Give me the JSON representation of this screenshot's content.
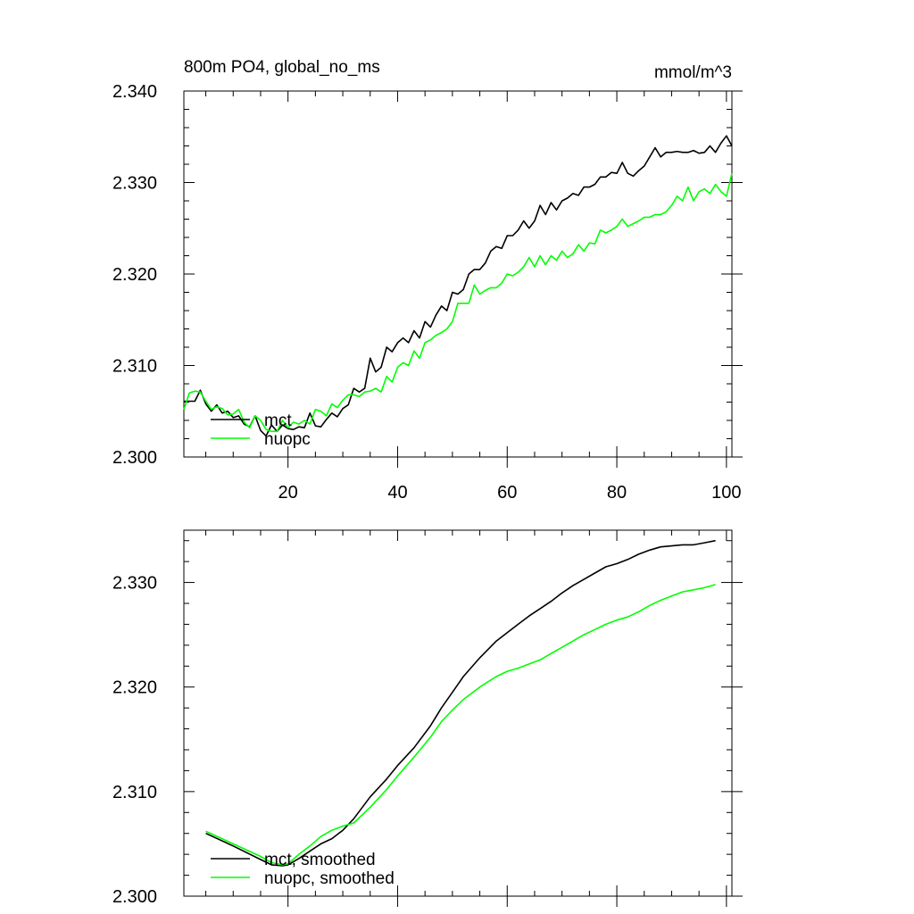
{
  "chart_data": [
    {
      "type": "line",
      "title": "800m PO4, global_no_ms",
      "units": "mmol/m^3",
      "xlabel": "",
      "ylabel": "",
      "xlim": [
        1,
        101
      ],
      "ylim": [
        2.3,
        2.34
      ],
      "xticks": [
        20,
        40,
        60,
        80,
        100
      ],
      "xtick_labels": [
        "20",
        "40",
        "60",
        "80",
        "100"
      ],
      "yticks": [
        2.3,
        2.31,
        2.32,
        2.33,
        2.34
      ],
      "ytick_labels": [
        "2.300",
        "2.310",
        "2.320",
        "2.330",
        "2.340"
      ],
      "grid": false,
      "legend_position": "bottom-left",
      "series": [
        {
          "name": "mct",
          "color": "#000000",
          "x": [
            1,
            2,
            3,
            4,
            5,
            6,
            7,
            8,
            9,
            10,
            11,
            12,
            13,
            14,
            15,
            16,
            17,
            18,
            19,
            20,
            21,
            22,
            23,
            24,
            25,
            26,
            27,
            28,
            29,
            30,
            31,
            32,
            33,
            34,
            35,
            36,
            37,
            38,
            39,
            40,
            41,
            42,
            43,
            44,
            45,
            46,
            47,
            48,
            49,
            50,
            51,
            52,
            53,
            54,
            55,
            56,
            57,
            58,
            59,
            60,
            61,
            62,
            63,
            64,
            65,
            66,
            67,
            68,
            69,
            70,
            71,
            72,
            73,
            74,
            75,
            76,
            77,
            78,
            79,
            80,
            81,
            82,
            83,
            84,
            85,
            86,
            87,
            88,
            89,
            90,
            91,
            92,
            93,
            94,
            95,
            96,
            97,
            98,
            99,
            100,
            101
          ],
          "values": [
            2.3061,
            2.3061,
            2.3061,
            2.3073,
            2.3058,
            2.305,
            2.3057,
            2.3048,
            2.305,
            2.3043,
            2.3045,
            2.3036,
            2.3033,
            2.3045,
            2.3029,
            2.3023,
            2.3035,
            2.3028,
            2.3035,
            2.3031,
            2.303,
            2.3033,
            2.3032,
            2.3048,
            2.3034,
            2.3033,
            2.3041,
            2.3048,
            2.3044,
            2.3053,
            2.3057,
            2.3075,
            2.3071,
            2.3075,
            2.3108,
            2.3093,
            2.3098,
            2.312,
            2.3115,
            2.3125,
            2.313,
            2.3125,
            2.3138,
            2.313,
            2.3148,
            2.3142,
            2.3155,
            2.3165,
            2.316,
            2.318,
            2.3178,
            2.3183,
            2.32,
            2.3205,
            2.3205,
            2.3212,
            2.3225,
            2.323,
            2.3228,
            2.3242,
            2.3242,
            2.3248,
            2.3258,
            2.325,
            2.3258,
            2.3275,
            2.3265,
            2.3278,
            2.327,
            2.328,
            2.3283,
            2.3288,
            2.3286,
            2.3295,
            2.3295,
            2.3298,
            2.3306,
            2.3306,
            2.3311,
            2.331,
            2.3322,
            2.331,
            2.3307,
            2.3313,
            2.3318,
            2.3328,
            2.3338,
            2.3328,
            2.3333,
            2.3333,
            2.3334,
            2.3333,
            2.3333,
            2.3335,
            2.3332,
            2.3333,
            2.334,
            2.3333,
            2.3343,
            2.3351,
            2.334
          ]
        },
        {
          "name": "nuopc",
          "color": "#00ff00",
          "x": [
            1,
            2,
            3,
            4,
            5,
            6,
            7,
            8,
            9,
            10,
            11,
            12,
            13,
            14,
            15,
            16,
            17,
            18,
            19,
            20,
            21,
            22,
            23,
            24,
            25,
            26,
            27,
            28,
            29,
            30,
            31,
            32,
            33,
            34,
            35,
            36,
            37,
            38,
            39,
            40,
            41,
            42,
            43,
            44,
            45,
            46,
            47,
            48,
            49,
            50,
            51,
            52,
            53,
            54,
            55,
            56,
            57,
            58,
            59,
            60,
            61,
            62,
            63,
            64,
            65,
            66,
            67,
            68,
            69,
            70,
            71,
            72,
            73,
            74,
            75,
            76,
            77,
            78,
            79,
            80,
            81,
            82,
            83,
            84,
            85,
            86,
            87,
            88,
            89,
            90,
            91,
            92,
            93,
            94,
            95,
            96,
            97,
            98,
            99,
            100,
            101
          ],
          "values": [
            2.3052,
            2.307,
            2.3072,
            2.3071,
            2.3061,
            2.3052,
            2.3055,
            2.3053,
            2.3046,
            2.3047,
            2.3052,
            2.3038,
            2.3032,
            2.3045,
            2.304,
            2.303,
            2.3028,
            2.3028,
            2.304,
            2.3032,
            2.3038,
            2.3036,
            2.304,
            2.3036,
            2.3052,
            2.305,
            2.3045,
            2.3058,
            2.3054,
            2.3062,
            2.3068,
            2.3068,
            2.3066,
            2.3071,
            2.3072,
            2.3075,
            2.3071,
            2.3088,
            2.3082,
            2.3098,
            2.3103,
            2.31,
            2.3116,
            2.3108,
            2.3125,
            2.3128,
            2.3133,
            2.3136,
            2.314,
            2.3148,
            2.3168,
            2.3168,
            2.3168,
            2.3188,
            2.3178,
            2.3182,
            2.3185,
            2.3185,
            2.319,
            2.32,
            2.3198,
            2.3202,
            2.3208,
            2.3218,
            2.3208,
            2.322,
            2.321,
            2.322,
            2.3215,
            2.3225,
            2.3218,
            2.3222,
            2.3232,
            2.3225,
            2.3234,
            2.3233,
            2.3248,
            2.3245,
            2.3248,
            2.3252,
            2.326,
            2.3252,
            2.3255,
            2.3258,
            2.3262,
            2.3262,
            2.3265,
            2.3265,
            2.3268,
            2.3275,
            2.3285,
            2.328,
            2.3295,
            2.328,
            2.329,
            2.3293,
            2.3288,
            2.3298,
            2.329,
            2.3285,
            2.331
          ]
        }
      ]
    },
    {
      "type": "line",
      "title": "",
      "xlabel": "",
      "ylabel": "",
      "xlim": [
        1,
        101
      ],
      "ylim": [
        2.3,
        2.335
      ],
      "xticks": [
        20,
        40,
        60,
        80,
        100
      ],
      "yticks": [
        2.3,
        2.31,
        2.32,
        2.33
      ],
      "ytick_labels": [
        "2.300",
        "2.310",
        "2.320",
        "2.330"
      ],
      "grid": false,
      "legend_position": "bottom-left",
      "series": [
        {
          "name": "mct, smoothed",
          "color": "#000000",
          "x": [
            5,
            10,
            15,
            17,
            19,
            20,
            22,
            24,
            26,
            28,
            30,
            32,
            35,
            38,
            40,
            43,
            46,
            48,
            50,
            52,
            55,
            58,
            60,
            62,
            64,
            66,
            68,
            70,
            72,
            74,
            76,
            78,
            80,
            82,
            84,
            86,
            88,
            90,
            92,
            94,
            96,
            98
          ],
          "values": [
            2.306,
            2.3048,
            2.3035,
            2.303,
            2.3029,
            2.303,
            2.3036,
            2.3043,
            2.305,
            2.3055,
            2.3063,
            2.3074,
            2.3095,
            2.3112,
            2.3125,
            2.3142,
            2.3163,
            2.318,
            2.3195,
            2.321,
            2.3228,
            2.3244,
            2.3252,
            2.326,
            2.3268,
            2.3275,
            2.3282,
            2.329,
            2.3297,
            2.3303,
            2.3309,
            2.3315,
            2.3318,
            2.3322,
            2.3327,
            2.3331,
            2.3334,
            2.3335,
            2.3336,
            2.3336,
            2.3338,
            2.334
          ]
        },
        {
          "name": "nuopc, smoothed",
          "color": "#00ff00",
          "x": [
            5,
            10,
            15,
            17,
            19,
            20,
            22,
            24,
            26,
            28,
            30,
            32,
            35,
            38,
            40,
            43,
            46,
            48,
            50,
            52,
            55,
            58,
            60,
            62,
            64,
            66,
            68,
            70,
            72,
            74,
            76,
            78,
            80,
            82,
            84,
            86,
            88,
            90,
            92,
            94,
            96,
            98
          ],
          "values": [
            2.3062,
            2.305,
            2.3038,
            2.3032,
            2.303,
            2.3031,
            2.304,
            2.3048,
            2.3057,
            2.3063,
            2.3067,
            2.307,
            2.3085,
            2.3102,
            2.3115,
            2.3133,
            2.3152,
            2.3167,
            2.3178,
            2.3188,
            2.32,
            2.321,
            2.3215,
            2.3218,
            2.3222,
            2.3226,
            2.3232,
            2.3238,
            2.3244,
            2.325,
            2.3255,
            2.326,
            2.3264,
            2.3267,
            2.3272,
            2.3278,
            2.3283,
            2.3287,
            2.3291,
            2.3293,
            2.3295,
            2.3298
          ]
        }
      ]
    }
  ]
}
